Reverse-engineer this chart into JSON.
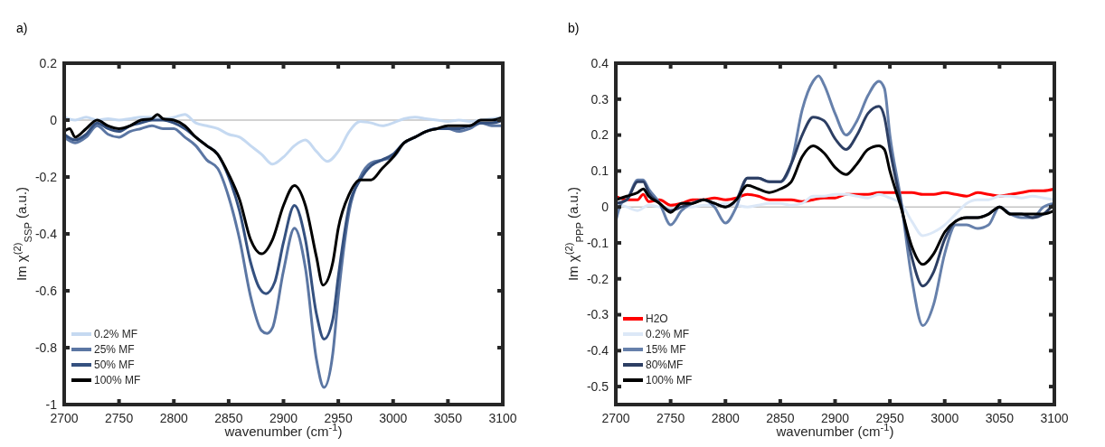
{
  "chart_data": [
    {
      "type": "line",
      "title": "a)",
      "xlabel": "wavenumber (cm$^{-1}$)",
      "ylabel": "Im χ$^{(2)}$$_{SSP}$ (a.u.)",
      "xlim": [
        2700,
        3100
      ],
      "xticks": [
        2700,
        2750,
        2800,
        2850,
        2900,
        2950,
        3000,
        3050,
        3100
      ],
      "ylim": [
        -1,
        0.2
      ],
      "yticks": [
        -1,
        -0.8,
        -0.6,
        -0.4,
        -0.2,
        0,
        0.2
      ],
      "legend": "bottom left",
      "line_style": "solid",
      "ref_lines": [
        {
          "axis": "y",
          "value": 0,
          "color": "#a6a6a6"
        }
      ],
      "series": [
        {
          "name": "0.2% MF",
          "color": "#c5d9f1",
          "x": [
            2700,
            2710,
            2720,
            2730,
            2740,
            2750,
            2760,
            2770,
            2780,
            2790,
            2800,
            2810,
            2820,
            2830,
            2840,
            2850,
            2860,
            2870,
            2880,
            2890,
            2900,
            2910,
            2920,
            2930,
            2940,
            2950,
            2960,
            2970,
            2980,
            2990,
            3000,
            3010,
            3020,
            3030,
            3040,
            3050,
            3060,
            3070,
            3080,
            3090,
            3100
          ],
          "values": [
            0.01,
            0,
            0.01,
            0,
            0.005,
            0,
            0.005,
            0.01,
            0.01,
            0.005,
            0.01,
            0.02,
            -0.01,
            -0.02,
            -0.03,
            -0.05,
            -0.06,
            -0.09,
            -0.12,
            -0.155,
            -0.13,
            -0.09,
            -0.07,
            -0.11,
            -0.145,
            -0.11,
            -0.04,
            -0.005,
            -0.01,
            -0.02,
            -0.01,
            0.005,
            0.01,
            0.005,
            0,
            -0.005,
            0,
            -0.005,
            0,
            0.005,
            0.01
          ]
        },
        {
          "name": "25% MF",
          "color": "#5b76a3",
          "x": [
            2700,
            2710,
            2720,
            2730,
            2740,
            2750,
            2760,
            2770,
            2780,
            2790,
            2800,
            2810,
            2820,
            2830,
            2840,
            2850,
            2860,
            2870,
            2880,
            2885,
            2890,
            2900,
            2910,
            2920,
            2930,
            2937,
            2945,
            2950,
            2960,
            2970,
            2980,
            2990,
            3000,
            3010,
            3020,
            3030,
            3040,
            3050,
            3060,
            3070,
            3080,
            3090,
            3100
          ],
          "values": [
            -0.06,
            -0.08,
            -0.06,
            -0.02,
            -0.05,
            -0.06,
            -0.04,
            -0.03,
            -0.02,
            -0.03,
            -0.03,
            -0.06,
            -0.09,
            -0.14,
            -0.17,
            -0.27,
            -0.42,
            -0.62,
            -0.74,
            -0.75,
            -0.73,
            -0.53,
            -0.38,
            -0.52,
            -0.84,
            -0.94,
            -0.82,
            -0.62,
            -0.32,
            -0.2,
            -0.15,
            -0.14,
            -0.13,
            -0.08,
            -0.06,
            -0.04,
            -0.03,
            -0.03,
            -0.04,
            -0.03,
            -0.01,
            -0.02,
            -0.02
          ]
        },
        {
          "name": "50% MF",
          "color": "#34507f",
          "x": [
            2700,
            2710,
            2720,
            2730,
            2740,
            2750,
            2760,
            2770,
            2780,
            2790,
            2800,
            2810,
            2820,
            2830,
            2840,
            2850,
            2860,
            2870,
            2878,
            2884,
            2892,
            2900,
            2910,
            2920,
            2930,
            2937,
            2945,
            2950,
            2960,
            2970,
            2980,
            2990,
            3000,
            3010,
            3020,
            3030,
            3040,
            3050,
            3060,
            3070,
            3080,
            3090,
            3100
          ],
          "values": [
            -0.05,
            -0.07,
            -0.05,
            -0.01,
            -0.03,
            -0.04,
            -0.02,
            -0.01,
            0,
            0,
            -0.01,
            -0.03,
            -0.06,
            -0.09,
            -0.12,
            -0.2,
            -0.32,
            -0.5,
            -0.59,
            -0.61,
            -0.57,
            -0.43,
            -0.3,
            -0.42,
            -0.68,
            -0.77,
            -0.7,
            -0.55,
            -0.3,
            -0.21,
            -0.16,
            -0.14,
            -0.12,
            -0.08,
            -0.06,
            -0.04,
            -0.03,
            -0.03,
            -0.03,
            -0.02,
            -0.01,
            -0.01,
            0
          ]
        },
        {
          "name": "100% MF",
          "color": "#000000",
          "x": [
            2700,
            2705,
            2710,
            2720,
            2730,
            2740,
            2750,
            2760,
            2770,
            2780,
            2785,
            2790,
            2800,
            2810,
            2820,
            2830,
            2840,
            2850,
            2860,
            2870,
            2880,
            2890,
            2900,
            2910,
            2920,
            2930,
            2936,
            2945,
            2950,
            2960,
            2970,
            2980,
            2990,
            3000,
            3010,
            3020,
            3030,
            3040,
            3050,
            3060,
            3070,
            3080,
            3090,
            3100
          ],
          "values": [
            -0.04,
            -0.03,
            -0.06,
            -0.03,
            0,
            -0.02,
            -0.03,
            -0.02,
            0,
            0.005,
            0.02,
            0.005,
            0,
            -0.02,
            -0.06,
            -0.09,
            -0.12,
            -0.19,
            -0.28,
            -0.42,
            -0.47,
            -0.42,
            -0.3,
            -0.23,
            -0.3,
            -0.48,
            -0.58,
            -0.5,
            -0.38,
            -0.26,
            -0.21,
            -0.21,
            -0.17,
            -0.13,
            -0.08,
            -0.06,
            -0.04,
            -0.03,
            -0.02,
            -0.02,
            -0.02,
            0,
            0,
            0.01
          ]
        }
      ]
    },
    {
      "type": "line",
      "title": "b)",
      "xlabel": "wavenumber (cm$^{-1}$)",
      "ylabel": "Im χ$^{(2)}$$_{PPP}$ (a.u.)",
      "xlim": [
        2700,
        3100
      ],
      "xticks": [
        2700,
        2750,
        2800,
        2850,
        2900,
        2950,
        3000,
        3050,
        3100
      ],
      "ylim": [
        -0.55,
        0.4
      ],
      "yticks": [
        -0.5,
        -0.4,
        -0.3,
        -0.2,
        -0.1,
        0,
        0.1,
        0.2,
        0.3,
        0.4
      ],
      "legend": "bottom left",
      "line_style": "solid",
      "ref_lines": [
        {
          "axis": "y",
          "value": 0,
          "color": "#a6a6a6"
        }
      ],
      "series": [
        {
          "name": "H2O",
          "color": "#ff0000",
          "x": [
            2700,
            2710,
            2720,
            2725,
            2730,
            2740,
            2750,
            2760,
            2770,
            2780,
            2790,
            2800,
            2810,
            2820,
            2830,
            2840,
            2850,
            2860,
            2870,
            2880,
            2890,
            2900,
            2910,
            2920,
            2930,
            2940,
            2950,
            2960,
            2970,
            2980,
            2990,
            3000,
            3010,
            3020,
            3030,
            3040,
            3050,
            3060,
            3070,
            3080,
            3090,
            3100
          ],
          "values": [
            0.03,
            0.02,
            0.02,
            0.035,
            0.015,
            0.02,
            0.005,
            0.01,
            0.02,
            0.02,
            0.025,
            0.02,
            0.025,
            0.035,
            0.03,
            0.02,
            0.02,
            0.02,
            0.015,
            0.02,
            0.025,
            0.025,
            0.035,
            0.035,
            0.035,
            0.04,
            0.04,
            0.04,
            0.04,
            0.035,
            0.035,
            0.04,
            0.035,
            0.03,
            0.04,
            0.035,
            0.03,
            0.035,
            0.04,
            0.045,
            0.045,
            0.05
          ]
        },
        {
          "name": "0.2% MF",
          "color": "#dce8f7",
          "x": [
            2700,
            2710,
            2720,
            2730,
            2740,
            2750,
            2760,
            2770,
            2780,
            2790,
            2800,
            2810,
            2820,
            2830,
            2840,
            2850,
            2860,
            2870,
            2880,
            2890,
            2900,
            2910,
            2920,
            2930,
            2940,
            2950,
            2960,
            2970,
            2980,
            2990,
            3000,
            3010,
            3020,
            3030,
            3040,
            3050,
            3060,
            3070,
            3080,
            3090,
            3100
          ],
          "values": [
            0.01,
            0,
            -0.01,
            0.005,
            0,
            -0.005,
            0,
            0,
            0.005,
            0.005,
            0.01,
            0.005,
            0,
            0.005,
            0.01,
            0.01,
            0.005,
            0.01,
            0.03,
            0.03,
            0.035,
            0.035,
            0.03,
            0.025,
            0.035,
            0.025,
            0.01,
            -0.04,
            -0.08,
            -0.07,
            -0.05,
            -0.02,
            0.01,
            0.02,
            0.02,
            0.03,
            0.03,
            0.025,
            0.03,
            0.025,
            0.02
          ]
        },
        {
          "name": "15% MF",
          "color": "#6680ab",
          "x": [
            2700,
            2705,
            2710,
            2720,
            2725,
            2730,
            2740,
            2750,
            2760,
            2770,
            2780,
            2790,
            2800,
            2810,
            2820,
            2830,
            2840,
            2850,
            2860,
            2870,
            2880,
            2885,
            2890,
            2900,
            2910,
            2920,
            2930,
            2940,
            2945,
            2950,
            2960,
            2970,
            2980,
            2990,
            3000,
            3010,
            3020,
            3030,
            3040,
            3050,
            3060,
            3070,
            3080,
            3090,
            3100
          ],
          "values": [
            -0.04,
            0.01,
            0.02,
            0.075,
            0.075,
            0.05,
            0.01,
            -0.05,
            -0.01,
            0.01,
            0.02,
            0,
            -0.045,
            0,
            0.08,
            0.08,
            0.07,
            0.07,
            0.12,
            0.27,
            0.35,
            0.365,
            0.34,
            0.26,
            0.2,
            0.24,
            0.31,
            0.35,
            0.33,
            0.2,
            0.02,
            -0.2,
            -0.33,
            -0.27,
            -0.13,
            -0.05,
            -0.05,
            -0.06,
            -0.05,
            0,
            -0.02,
            -0.03,
            -0.03,
            0,
            0.01
          ]
        },
        {
          "name": "80%MF",
          "color": "#2c3e63",
          "x": [
            2700,
            2710,
            2720,
            2725,
            2730,
            2740,
            2750,
            2760,
            2770,
            2780,
            2790,
            2800,
            2810,
            2820,
            2830,
            2840,
            2850,
            2860,
            2870,
            2880,
            2890,
            2900,
            2910,
            2920,
            2930,
            2940,
            2945,
            2950,
            2960,
            2970,
            2980,
            2990,
            3000,
            3010,
            3020,
            3030,
            3040,
            3050,
            3060,
            3070,
            3080,
            3090,
            3100
          ],
          "values": [
            0.01,
            0.02,
            0.07,
            0.07,
            0.04,
            0.01,
            -0.01,
            0,
            0.01,
            0.02,
            0.01,
            0,
            0.02,
            0.08,
            0.08,
            0.07,
            0.07,
            0.12,
            0.2,
            0.25,
            0.24,
            0.19,
            0.16,
            0.2,
            0.26,
            0.28,
            0.25,
            0.16,
            0.01,
            -0.14,
            -0.22,
            -0.18,
            -0.09,
            -0.04,
            -0.03,
            -0.03,
            -0.02,
            0,
            -0.02,
            -0.02,
            -0.03,
            -0.02,
            0.01
          ]
        },
        {
          "name": "100% MF",
          "color": "#000000",
          "x": [
            2700,
            2710,
            2720,
            2725,
            2730,
            2740,
            2750,
            2760,
            2770,
            2780,
            2790,
            2800,
            2810,
            2820,
            2830,
            2840,
            2850,
            2860,
            2870,
            2880,
            2890,
            2900,
            2910,
            2920,
            2930,
            2940,
            2945,
            2950,
            2960,
            2970,
            2980,
            2990,
            3000,
            3010,
            3020,
            3030,
            3040,
            3050,
            3060,
            3070,
            3080,
            3090,
            3100
          ],
          "values": [
            0.02,
            0.03,
            0.04,
            0.05,
            0.03,
            0.01,
            -0.015,
            0.01,
            0.01,
            0.02,
            0.01,
            0,
            0.02,
            0.06,
            0.05,
            0.04,
            0.05,
            0.07,
            0.14,
            0.17,
            0.15,
            0.11,
            0.09,
            0.12,
            0.16,
            0.17,
            0.16,
            0.1,
            0,
            -0.11,
            -0.16,
            -0.13,
            -0.07,
            -0.04,
            -0.03,
            -0.03,
            -0.02,
            0,
            -0.02,
            -0.02,
            -0.02,
            -0.02,
            -0.01
          ]
        }
      ]
    }
  ]
}
